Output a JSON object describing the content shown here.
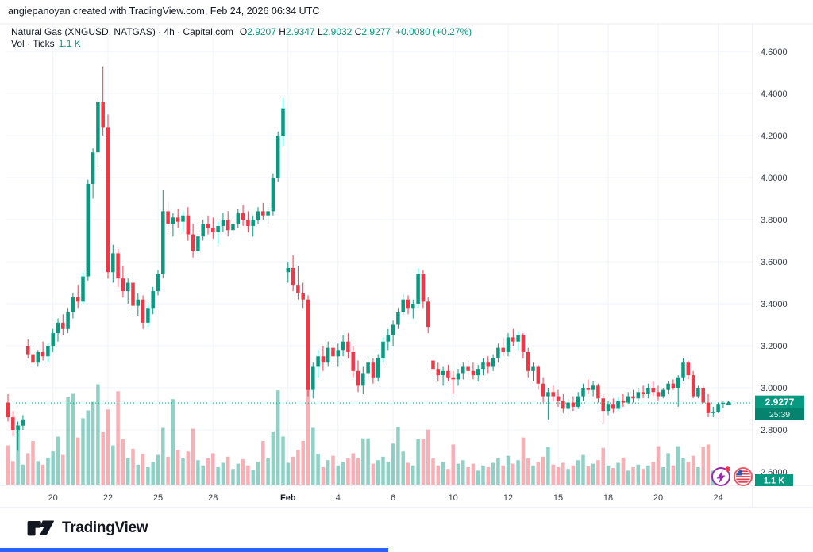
{
  "attribution": {
    "text": "angiepanoyan created with TradingView.com, Feb 24, 2026 06:34 UTC"
  },
  "header": {
    "symbol_title": "Natural Gas (XNGUSD, NATGAS) · 4h · Capital.com",
    "ohlc": [
      {
        "k": "O",
        "v": "2.9207"
      },
      {
        "k": "H",
        "v": "2.9347"
      },
      {
        "k": "L",
        "v": "2.9032"
      },
      {
        "k": "C",
        "v": "2.9277"
      }
    ],
    "change": "+0.0080 (+0.27%)",
    "vol_label": "Vol · Ticks",
    "vol_value": "1.1 K"
  },
  "price_axis": {
    "ticks": [
      "4.6000",
      "4.4000",
      "4.2000",
      "4.0000",
      "3.8000",
      "3.6000",
      "3.4000",
      "3.2000",
      "3.0000",
      "2.8000",
      "2.6000"
    ],
    "tick_prices": [
      4.6,
      4.4,
      4.2,
      4.0,
      3.8,
      3.6,
      3.4,
      3.2,
      3.0,
      2.8,
      2.6
    ],
    "price_label": "2.9277",
    "countdown": "25:39",
    "volume_label": "1.1 K"
  },
  "time_axis": {
    "ticks": [
      {
        "label": "20",
        "i": 9
      },
      {
        "label": "22",
        "i": 20
      },
      {
        "label": "25",
        "i": 30
      },
      {
        "label": "28",
        "i": 41
      },
      {
        "label": "Feb",
        "i": 56,
        "bold": true
      },
      {
        "label": "4",
        "i": 66
      },
      {
        "label": "6",
        "i": 77
      },
      {
        "label": "10",
        "i": 89
      },
      {
        "label": "12",
        "i": 100
      },
      {
        "label": "15",
        "i": 110
      },
      {
        "label": "18",
        "i": 120
      },
      {
        "label": "20",
        "i": 130
      },
      {
        "label": "24",
        "i": 142
      }
    ]
  },
  "footer": {
    "brand": "TradingView"
  },
  "icons": {
    "event_flash": "economic-event-flash-icon",
    "us_flag": "us-flag-icon"
  },
  "colors": {
    "up": "#089981",
    "down": "#F23645",
    "vol_up": "rgba(8,153,129,0.45)",
    "vol_down": "rgba(242,54,69,0.40)",
    "grid": "#F0F3FA",
    "border": "#E0E3EB",
    "text": "#131722",
    "scale_text": "#363A45",
    "purple": "#9C27B0",
    "flag_red": "#E2434F",
    "flag_blue": "#3C55A5",
    "bottom_blue": "#2962FF"
  },
  "chart_data": {
    "type": "candlestick",
    "title": "Natural Gas (XNGUSD, NATGAS) · 4h · Capital.com",
    "symbol": "XNGUSD",
    "interval": "4h",
    "exchange": "Capital.com",
    "open": 2.9207,
    "high": 2.9347,
    "low": 2.9032,
    "close": 2.9277,
    "change": "+0.0080 (+0.27%)",
    "current_price": 2.9277,
    "current_volume_k": 1.1,
    "ylim": [
      2.6,
      4.6
    ],
    "grid": true,
    "volume_series": "Vol · Ticks (K), pale up/down bars at bottom pane",
    "candles_format": [
      "open",
      "high",
      "low",
      "close",
      "volume_k"
    ],
    "candles": [
      [
        2.93,
        2.97,
        2.84,
        2.86,
        4.5
      ],
      [
        2.86,
        2.89,
        2.77,
        2.8,
        2.7
      ],
      [
        2.8,
        2.84,
        2.7,
        2.82,
        6.8
      ],
      [
        2.82,
        2.87,
        2.8,
        2.85,
        2.3
      ],
      [
        3.2,
        3.23,
        3.14,
        3.16,
        3.6
      ],
      [
        3.16,
        3.19,
        3.07,
        3.12,
        5.0
      ],
      [
        3.12,
        3.18,
        3.1,
        3.17,
        2.7
      ],
      [
        3.17,
        3.22,
        3.13,
        3.15,
        2.3
      ],
      [
        3.15,
        3.21,
        3.12,
        3.2,
        3.1
      ],
      [
        3.2,
        3.28,
        3.17,
        3.26,
        3.8
      ],
      [
        3.26,
        3.33,
        3.22,
        3.31,
        5.5
      ],
      [
        3.31,
        3.35,
        3.25,
        3.28,
        3.4
      ],
      [
        3.28,
        3.38,
        3.26,
        3.36,
        10.0
      ],
      [
        3.36,
        3.45,
        3.33,
        3.43,
        10.4
      ],
      [
        3.43,
        3.49,
        3.38,
        3.41,
        5.4
      ],
      [
        3.41,
        3.55,
        3.4,
        3.53,
        7.6
      ],
      [
        3.53,
        3.99,
        3.51,
        3.97,
        8.5
      ],
      [
        3.97,
        4.14,
        3.9,
        4.12,
        9.5
      ],
      [
        4.12,
        4.38,
        4.05,
        4.36,
        11.5
      ],
      [
        4.36,
        4.53,
        4.2,
        4.24,
        6.0
      ],
      [
        4.24,
        4.3,
        3.52,
        3.55,
        8.6
      ],
      [
        3.55,
        3.68,
        3.5,
        3.64,
        4.5
      ],
      [
        3.64,
        3.66,
        3.48,
        3.52,
        10.7
      ],
      [
        3.52,
        3.58,
        3.43,
        3.46,
        5.2
      ],
      [
        3.46,
        3.52,
        3.4,
        3.5,
        3.0
      ],
      [
        3.5,
        3.53,
        3.36,
        3.39,
        4.1
      ],
      [
        3.39,
        3.45,
        3.34,
        3.42,
        2.3
      ],
      [
        3.42,
        3.44,
        3.28,
        3.31,
        3.5
      ],
      [
        3.31,
        3.4,
        3.29,
        3.38,
        2.0
      ],
      [
        3.38,
        3.48,
        3.35,
        3.46,
        2.6
      ],
      [
        3.46,
        3.56,
        3.44,
        3.54,
        3.4
      ],
      [
        3.54,
        3.94,
        3.52,
        3.84,
        6.5
      ],
      [
        3.84,
        3.88,
        3.74,
        3.78,
        3.2
      ],
      [
        3.78,
        3.83,
        3.72,
        3.81,
        9.8
      ],
      [
        3.81,
        3.85,
        3.76,
        3.79,
        4.0
      ],
      [
        3.79,
        3.84,
        3.74,
        3.82,
        3.0
      ],
      [
        3.82,
        3.86,
        3.7,
        3.73,
        3.8
      ],
      [
        3.73,
        3.78,
        3.62,
        3.65,
        6.4
      ],
      [
        3.65,
        3.74,
        3.63,
        3.72,
        2.8
      ],
      [
        3.72,
        3.8,
        3.7,
        3.78,
        2.2
      ],
      [
        3.78,
        3.82,
        3.73,
        3.76,
        3.0
      ],
      [
        3.76,
        3.81,
        3.71,
        3.74,
        3.6
      ],
      [
        3.74,
        3.79,
        3.68,
        3.77,
        2.0
      ],
      [
        3.77,
        3.83,
        3.74,
        3.8,
        2.5
      ],
      [
        3.8,
        3.84,
        3.72,
        3.75,
        3.2
      ],
      [
        3.75,
        3.8,
        3.7,
        3.78,
        1.8
      ],
      [
        3.78,
        3.85,
        3.76,
        3.83,
        2.4
      ],
      [
        3.83,
        3.87,
        3.77,
        3.8,
        2.9
      ],
      [
        3.8,
        3.84,
        3.74,
        3.77,
        2.2
      ],
      [
        3.77,
        3.82,
        3.72,
        3.8,
        1.7
      ],
      [
        3.8,
        3.86,
        3.78,
        3.84,
        2.6
      ],
      [
        3.84,
        3.88,
        3.8,
        3.82,
        5.0
      ],
      [
        3.82,
        3.86,
        3.78,
        3.84,
        3.0
      ],
      [
        3.84,
        4.02,
        3.82,
        4.0,
        6.0
      ],
      [
        4.0,
        4.22,
        3.98,
        4.2,
        10.8
      ],
      [
        4.2,
        4.38,
        4.15,
        4.33,
        5.5
      ],
      [
        3.55,
        3.6,
        3.5,
        3.57,
        2.5
      ],
      [
        3.57,
        3.63,
        3.46,
        3.49,
        3.2
      ],
      [
        3.49,
        3.58,
        3.42,
        3.45,
        4.0
      ],
      [
        3.45,
        3.5,
        3.38,
        3.42,
        5.0
      ],
      [
        3.42,
        3.44,
        2.96,
        2.99,
        11.6
      ],
      [
        2.99,
        3.12,
        2.95,
        3.1,
        6.5
      ],
      [
        3.1,
        3.18,
        3.05,
        3.15,
        3.5
      ],
      [
        3.15,
        3.2,
        3.08,
        3.12,
        2.0
      ],
      [
        3.12,
        3.22,
        3.1,
        3.19,
        2.8
      ],
      [
        3.19,
        3.24,
        3.12,
        3.15,
        3.3
      ],
      [
        3.15,
        3.21,
        3.1,
        3.18,
        2.2
      ],
      [
        3.18,
        3.25,
        3.15,
        3.22,
        2.6
      ],
      [
        3.22,
        3.26,
        3.14,
        3.17,
        3.0
      ],
      [
        3.17,
        3.2,
        3.05,
        3.08,
        3.6
      ],
      [
        3.08,
        3.13,
        2.98,
        3.01,
        3.0
      ],
      [
        3.01,
        3.1,
        2.97,
        3.07,
        5.3
      ],
      [
        3.07,
        3.15,
        3.04,
        3.12,
        5.3
      ],
      [
        3.12,
        3.14,
        3.02,
        3.05,
        2.4
      ],
      [
        3.05,
        3.16,
        3.03,
        3.14,
        2.8
      ],
      [
        3.14,
        3.24,
        3.12,
        3.22,
        3.2
      ],
      [
        3.22,
        3.28,
        3.18,
        3.25,
        2.6
      ],
      [
        3.25,
        3.32,
        3.2,
        3.3,
        4.7
      ],
      [
        3.3,
        3.38,
        3.28,
        3.36,
        6.6
      ],
      [
        3.36,
        3.45,
        3.34,
        3.42,
        3.8
      ],
      [
        3.42,
        3.44,
        3.35,
        3.38,
        2.5
      ],
      [
        3.38,
        3.42,
        3.33,
        3.4,
        2.2
      ],
      [
        3.4,
        3.57,
        3.38,
        3.54,
        5.2
      ],
      [
        3.54,
        3.56,
        3.38,
        3.41,
        5.2
      ],
      [
        3.41,
        3.43,
        3.26,
        3.29,
        6.3
      ],
      [
        3.13,
        3.15,
        3.06,
        3.09,
        3.0
      ],
      [
        3.09,
        3.12,
        3.03,
        3.06,
        2.2
      ],
      [
        3.06,
        3.1,
        3.01,
        3.08,
        2.6
      ],
      [
        3.08,
        3.11,
        3.03,
        3.05,
        1.8
      ],
      [
        3.05,
        3.08,
        2.97,
        3.04,
        4.6
      ],
      [
        3.04,
        3.09,
        3.01,
        3.07,
        2.4
      ],
      [
        3.07,
        3.12,
        3.04,
        3.1,
        2.8
      ],
      [
        3.1,
        3.13,
        3.05,
        3.08,
        2.0
      ],
      [
        3.08,
        3.12,
        3.04,
        3.06,
        2.4
      ],
      [
        3.06,
        3.11,
        3.03,
        3.09,
        1.6
      ],
      [
        3.09,
        3.14,
        3.06,
        3.12,
        2.2
      ],
      [
        3.12,
        3.15,
        3.07,
        3.1,
        2.0
      ],
      [
        3.1,
        3.16,
        3.08,
        3.14,
        2.5
      ],
      [
        3.14,
        3.21,
        3.12,
        3.19,
        3.0
      ],
      [
        3.19,
        3.24,
        3.15,
        3.17,
        2.2
      ],
      [
        3.17,
        3.26,
        3.15,
        3.24,
        3.3
      ],
      [
        3.24,
        3.28,
        3.2,
        3.22,
        2.4
      ],
      [
        3.22,
        3.27,
        3.18,
        3.25,
        2.8
      ],
      [
        3.25,
        3.26,
        3.14,
        3.17,
        5.4
      ],
      [
        3.17,
        3.19,
        3.05,
        3.08,
        3.0
      ],
      [
        3.08,
        3.12,
        3.03,
        3.1,
        2.2
      ],
      [
        3.1,
        3.11,
        2.99,
        3.02,
        2.6
      ],
      [
        3.02,
        3.05,
        2.93,
        2.96,
        3.2
      ],
      [
        2.96,
        3.0,
        2.85,
        2.98,
        4.3
      ],
      [
        2.98,
        3.01,
        2.94,
        2.96,
        2.3
      ],
      [
        2.96,
        2.99,
        2.91,
        2.94,
        2.0
      ],
      [
        2.94,
        2.97,
        2.88,
        2.9,
        2.5
      ],
      [
        2.9,
        2.95,
        2.87,
        2.93,
        1.8
      ],
      [
        2.93,
        2.96,
        2.89,
        2.91,
        2.2
      ],
      [
        2.91,
        2.98,
        2.9,
        2.96,
        2.8
      ],
      [
        2.96,
        3.02,
        2.94,
        3.0,
        3.4
      ],
      [
        3.0,
        3.04,
        2.97,
        2.99,
        2.1
      ],
      [
        2.99,
        3.03,
        2.96,
        3.01,
        2.4
      ],
      [
        3.01,
        3.02,
        2.93,
        2.95,
        2.8
      ],
      [
        2.95,
        2.97,
        2.83,
        2.89,
        4.2
      ],
      [
        2.89,
        2.94,
        2.87,
        2.92,
        2.2
      ],
      [
        2.92,
        2.95,
        2.88,
        2.9,
        1.9
      ],
      [
        2.9,
        2.96,
        2.89,
        2.94,
        2.5
      ],
      [
        2.94,
        2.97,
        2.91,
        2.93,
        3.1
      ],
      [
        2.93,
        2.98,
        2.92,
        2.96,
        1.6
      ],
      [
        2.96,
        2.99,
        2.93,
        2.95,
        2.0
      ],
      [
        2.95,
        3.0,
        2.94,
        2.98,
        2.3
      ],
      [
        2.98,
        3.01,
        2.95,
        2.97,
        1.8
      ],
      [
        2.97,
        3.02,
        2.95,
        3.0,
        2.2
      ],
      [
        3.0,
        3.03,
        2.96,
        2.98,
        2.6
      ],
      [
        2.98,
        3.01,
        2.94,
        2.96,
        4.4
      ],
      [
        2.96,
        3.0,
        2.95,
        2.99,
        2.0
      ],
      [
        2.99,
        3.03,
        2.97,
        3.02,
        3.6
      ],
      [
        3.02,
        3.04,
        2.99,
        3.0,
        2.2
      ],
      [
        3.0,
        3.06,
        2.91,
        3.05,
        4.4
      ],
      [
        3.05,
        3.14,
        3.03,
        3.12,
        3.0
      ],
      [
        3.12,
        3.13,
        3.04,
        3.06,
        2.6
      ],
      [
        3.06,
        3.08,
        2.95,
        2.96,
        3.3
      ],
      [
        2.96,
        3.01,
        2.95,
        3.0,
        2.0
      ],
      [
        3.0,
        3.01,
        2.92,
        2.93,
        4.3
      ],
      [
        2.93,
        2.97,
        2.86,
        2.88,
        4.6
      ],
      [
        2.88,
        2.91,
        2.86,
        2.885,
        1.6
      ],
      [
        2.885,
        2.93,
        2.88,
        2.92,
        1.2
      ],
      [
        2.9207,
        2.9347,
        2.9032,
        2.9277,
        1.1
      ]
    ]
  }
}
